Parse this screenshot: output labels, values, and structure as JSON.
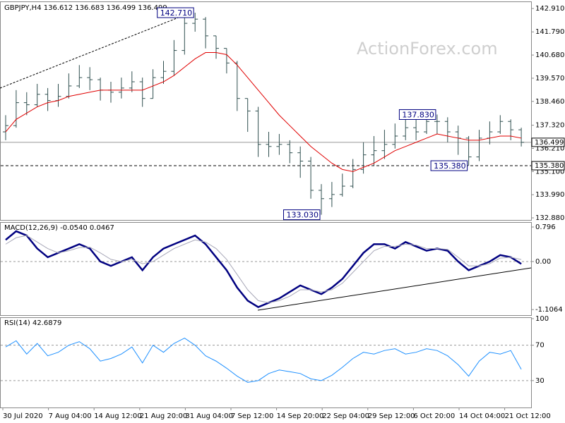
{
  "chart_data": [
    {
      "type": "ohlc",
      "title": "GBPJPY,H4  136.612 136.683 136.499 136.499",
      "watermark": "ActionForex.com",
      "color": "#2f4f4f",
      "open": [
        137.0,
        137.3,
        138.4,
        138.3,
        138.8,
        138.5,
        138.7,
        139.2,
        139.6,
        139.5,
        139.0,
        138.9,
        139.1,
        139.4,
        138.6,
        139.6,
        139.9,
        140.9,
        142.2,
        142.4,
        141.6,
        141.0,
        140.3,
        138.6,
        138.0,
        136.4,
        136.3,
        136.4,
        136.0,
        135.6,
        134.2,
        133.8,
        134.0,
        134.4,
        135.2,
        135.9,
        136.1,
        136.4,
        136.8,
        137.2,
        137.0,
        137.5,
        137.5,
        137.0,
        136.7,
        135.8,
        136.7,
        137.0,
        137.5,
        137.1
      ],
      "high": [
        137.8,
        139.0,
        138.9,
        139.3,
        139.1,
        139.3,
        139.8,
        140.2,
        140.1,
        139.6,
        139.4,
        139.6,
        139.9,
        139.6,
        140.0,
        140.4,
        141.4,
        142.6,
        142.71,
        142.5,
        141.6,
        141.0,
        140.4,
        138.6,
        138.2,
        137.0,
        136.9,
        136.6,
        136.3,
        135.8,
        134.5,
        134.6,
        135.0,
        135.7,
        136.5,
        136.8,
        137.1,
        137.4,
        137.7,
        137.6,
        137.8,
        137.83,
        137.7,
        137.3,
        136.8,
        137.1,
        137.5,
        137.8,
        137.6,
        137.2
      ],
      "low": [
        136.6,
        137.2,
        137.8,
        138.2,
        138.0,
        138.2,
        138.6,
        139.1,
        139.0,
        138.5,
        138.4,
        138.6,
        138.9,
        138.2,
        138.6,
        139.3,
        139.7,
        140.7,
        141.8,
        141.0,
        140.5,
        139.8,
        138.0,
        137.0,
        135.8,
        135.8,
        135.9,
        135.5,
        134.8,
        133.8,
        133.03,
        133.4,
        133.9,
        134.3,
        135.0,
        135.4,
        135.7,
        136.2,
        136.6,
        136.6,
        136.9,
        136.9,
        136.5,
        135.9,
        135.38,
        135.6,
        136.4,
        136.9,
        136.6,
        136.3
      ],
      "close": [
        137.3,
        138.4,
        138.3,
        138.8,
        138.5,
        138.7,
        139.2,
        139.6,
        139.5,
        139.0,
        138.9,
        139.1,
        139.4,
        138.6,
        139.6,
        139.9,
        140.9,
        142.2,
        142.4,
        141.6,
        141.0,
        140.3,
        138.6,
        138.0,
        136.4,
        136.3,
        136.4,
        136.0,
        135.6,
        134.2,
        133.8,
        134.0,
        134.4,
        135.2,
        135.9,
        136.1,
        136.4,
        136.8,
        137.2,
        137.0,
        137.5,
        137.5,
        137.0,
        136.7,
        135.8,
        136.7,
        137.0,
        137.5,
        137.1,
        136.499
      ],
      "series": [
        {
          "color": "#e00000",
          "values": [
            137.0,
            137.6,
            137.9,
            138.2,
            138.4,
            138.5,
            138.7,
            138.8,
            138.9,
            139.0,
            139.0,
            139.0,
            139.0,
            139.0,
            139.2,
            139.4,
            139.7,
            140.1,
            140.5,
            140.8,
            140.8,
            140.7,
            140.2,
            139.6,
            139.0,
            138.4,
            137.8,
            137.3,
            136.8,
            136.3,
            135.9,
            135.5,
            135.2,
            135.1,
            135.3,
            135.5,
            135.8,
            136.1,
            136.3,
            136.5,
            136.7,
            136.9,
            136.8,
            136.7,
            136.6,
            136.6,
            136.7,
            136.8,
            136.8,
            136.7
          ]
        }
      ],
      "annotations": [
        {
          "value": 142.71,
          "label": "142.710"
        },
        {
          "value": 137.83,
          "label": "137.830"
        },
        {
          "value": 135.38,
          "label": "135.380"
        },
        {
          "value": 133.03,
          "label": "133.030"
        }
      ],
      "levels": [
        {
          "value": 136.499,
          "label": "136.499",
          "style": "solid"
        },
        {
          "value": 135.38,
          "label": "135.380",
          "style": "dashed"
        }
      ],
      "ylim": [
        132.78,
        143.25
      ],
      "yticks": [
        {
          "value": 142.91,
          "label": "142.910"
        },
        {
          "value": 141.79,
          "label": "141.790"
        },
        {
          "value": 140.68,
          "label": "140.680"
        },
        {
          "value": 139.57,
          "label": "139.570"
        },
        {
          "value": 138.46,
          "label": "138.460"
        },
        {
          "value": 137.32,
          "label": "137.320"
        },
        {
          "value": 136.21,
          "label": "136.210"
        },
        {
          "value": 135.1,
          "label": "135.100"
        },
        {
          "value": 133.99,
          "label": "133.990"
        },
        {
          "value": 132.88,
          "label": "132.880"
        }
      ],
      "time_labels": [
        "30 Jul 2020",
        "7 Aug 04:00",
        "14 Aug 12:00",
        "21 Aug 20:00",
        "31 Aug 04:00",
        "7 Sep 12:00",
        "14 Sep 20:00",
        "22 Sep 04:00",
        "29 Sep 12:00",
        "6 Oct 20:00",
        "14 Oct 04:00",
        "21 Oct 12:00"
      ]
    },
    {
      "type": "line",
      "title": "MACD(12,26,9) -0.0540 0.0467",
      "series": [
        {
          "color": "#000080",
          "width": 2.5,
          "values": [
            0.5,
            0.7,
            0.6,
            0.3,
            0.1,
            0.2,
            0.3,
            0.4,
            0.3,
            0.0,
            -0.1,
            0.0,
            0.1,
            -0.2,
            0.1,
            0.3,
            0.4,
            0.5,
            0.6,
            0.4,
            0.1,
            -0.2,
            -0.6,
            -0.9,
            -1.05,
            -0.95,
            -0.85,
            -0.7,
            -0.55,
            -0.65,
            -0.75,
            -0.6,
            -0.4,
            -0.1,
            0.2,
            0.4,
            0.4,
            0.3,
            0.45,
            0.35,
            0.25,
            0.3,
            0.25,
            0.0,
            -0.2,
            -0.1,
            0.0,
            0.15,
            0.1,
            -0.054
          ]
        },
        {
          "color": "#a8a8b8",
          "width": 1,
          "values": [
            0.4,
            0.55,
            0.6,
            0.45,
            0.3,
            0.2,
            0.25,
            0.32,
            0.33,
            0.2,
            0.05,
            0.0,
            0.05,
            -0.05,
            0.0,
            0.15,
            0.3,
            0.4,
            0.5,
            0.45,
            0.3,
            0.05,
            -0.3,
            -0.65,
            -0.9,
            -0.95,
            -0.9,
            -0.8,
            -0.65,
            -0.65,
            -0.7,
            -0.65,
            -0.5,
            -0.25,
            0.0,
            0.25,
            0.35,
            0.35,
            0.4,
            0.38,
            0.3,
            0.3,
            0.28,
            0.1,
            -0.1,
            -0.1,
            -0.05,
            0.08,
            0.1,
            0.0467
          ]
        }
      ],
      "reference_lines": [
        0
      ],
      "ylim": [
        -1.235,
        0.91
      ],
      "yticks": [
        0.796,
        {
          "value": 0,
          "label": "0.00"
        },
        -1.1064
      ]
    },
    {
      "type": "line",
      "title": "RSI(14) 42.6879",
      "series": [
        {
          "color": "#1e90ff",
          "width": 1,
          "values": [
            68,
            75,
            60,
            72,
            58,
            62,
            70,
            74,
            66,
            52,
            55,
            60,
            68,
            50,
            70,
            62,
            72,
            78,
            70,
            58,
            52,
            44,
            35,
            28,
            30,
            38,
            42,
            40,
            38,
            32,
            30,
            36,
            45,
            55,
            62,
            60,
            64,
            66,
            60,
            62,
            66,
            64,
            58,
            48,
            35,
            52,
            62,
            60,
            64,
            42.6879
          ]
        }
      ],
      "reference_lines": [
        70,
        30
      ],
      "ylim": [
        -0.4,
        101.6
      ],
      "yticks": [
        100,
        70,
        30
      ]
    }
  ]
}
